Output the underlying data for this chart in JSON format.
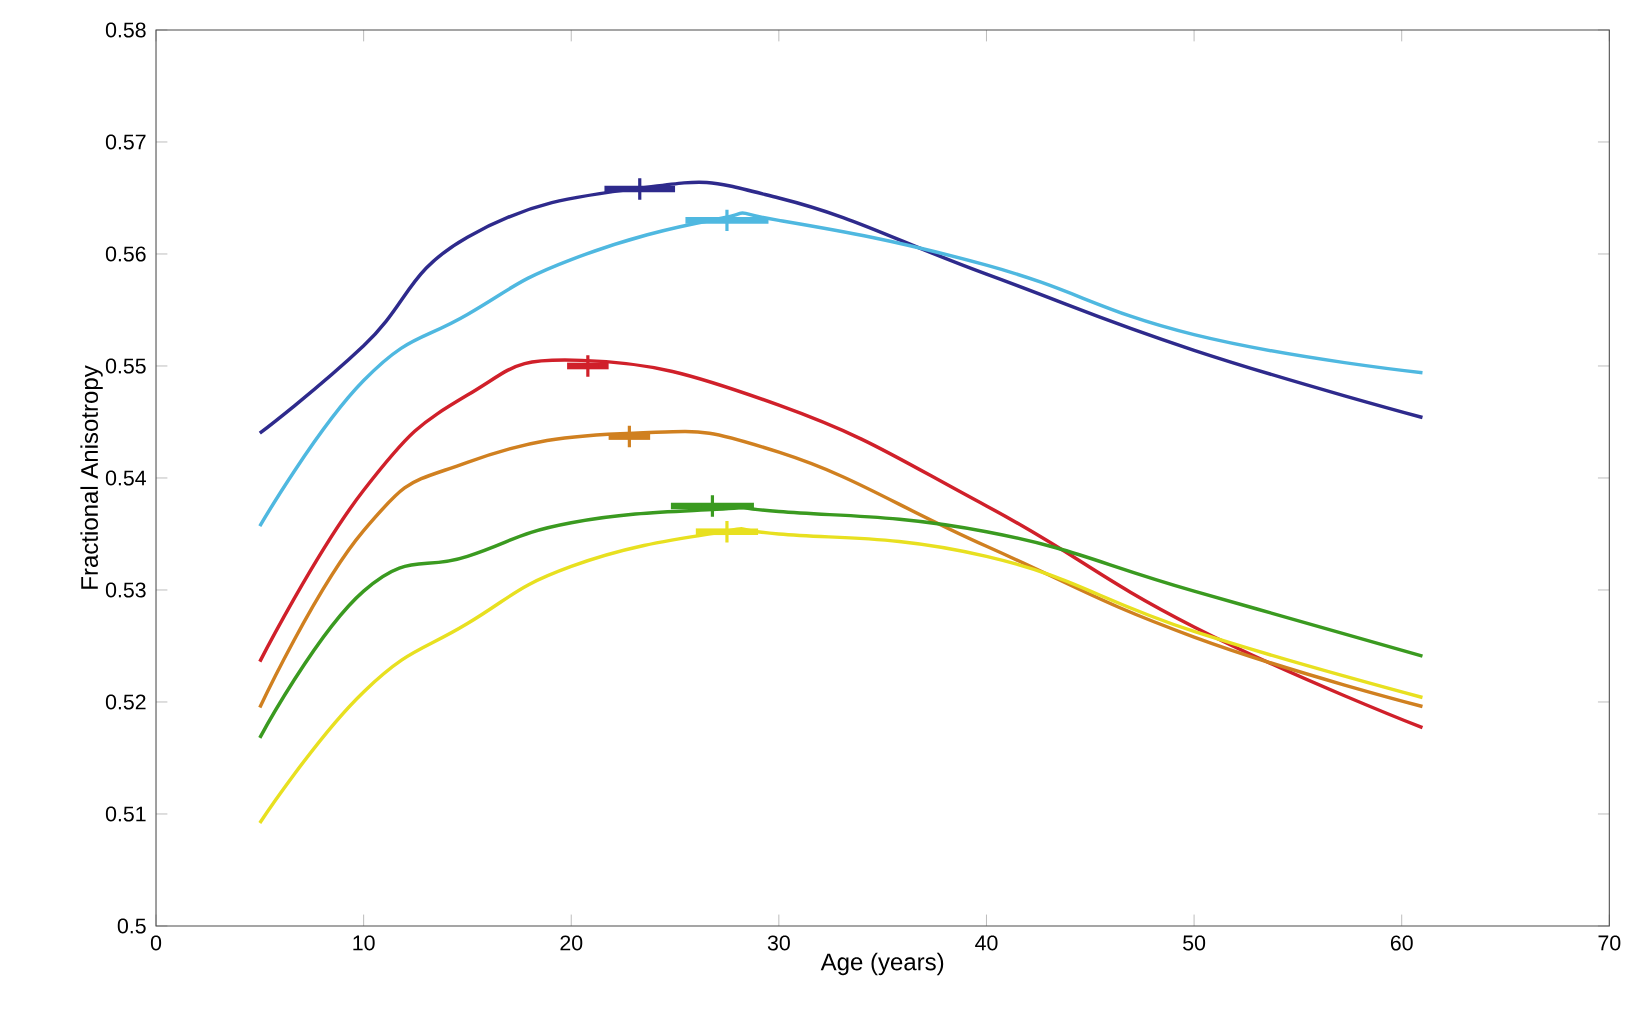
{
  "chart_data": {
    "type": "line",
    "xlabel": "Age (years)",
    "ylabel": "Fractional Anisotropy",
    "xlim": [
      0,
      70
    ],
    "xticks": [
      0,
      10,
      20,
      30,
      40,
      50,
      60,
      70
    ],
    "ylim": [
      0.5,
      0.58
    ],
    "yticks": [
      0.5,
      0.51,
      0.52,
      0.53,
      0.54,
      0.55,
      0.56,
      0.57,
      0.58
    ],
    "grid": false,
    "marker": "none",
    "line_style": "solid",
    "series": [
      {
        "color": "#2e2a8c",
        "x": [
          5,
          10,
          15,
          23.4,
          30,
          40,
          50,
          61
        ],
        "values": [
          0.544,
          0.5518,
          0.5615,
          0.5659,
          0.565,
          0.5582,
          0.5514,
          0.5454
        ]
      },
      {
        "color": "#4fb8e0",
        "x": [
          5,
          10,
          15,
          20,
          27,
          30,
          40,
          50,
          61
        ],
        "values": [
          0.5357,
          0.5487,
          0.5546,
          0.5595,
          0.5631,
          0.563,
          0.559,
          0.5528,
          0.5494
        ]
      },
      {
        "color": "#d0202a",
        "x": [
          5,
          10,
          15,
          20.5,
          30,
          40,
          50,
          61
        ],
        "values": [
          0.5236,
          0.5389,
          0.5474,
          0.5505,
          0.5465,
          0.5375,
          0.5267,
          0.5177
        ]
      },
      {
        "color": "#d08020",
        "x": [
          5,
          10,
          15,
          23,
          30,
          40,
          50,
          61
        ],
        "values": [
          0.5195,
          0.5353,
          0.5414,
          0.544,
          0.5423,
          0.5339,
          0.5258,
          0.5196
        ]
      },
      {
        "color": "#3a9a20",
        "x": [
          5,
          10,
          15,
          20,
          27,
          30,
          40,
          50,
          61
        ],
        "values": [
          0.5168,
          0.5299,
          0.533,
          0.536,
          0.5372,
          0.537,
          0.5352,
          0.5299,
          0.5241
        ]
      },
      {
        "color": "#e8e020",
        "x": [
          5,
          10,
          15,
          20,
          27,
          30,
          40,
          50,
          61
        ],
        "values": [
          0.5092,
          0.5209,
          0.527,
          0.5321,
          0.5351,
          0.535,
          0.533,
          0.5263,
          0.5204
        ]
      },
      {
        "type": "scatter",
        "marker": "cross",
        "x": [
          23.3,
          27.5,
          20.8,
          22.8,
          26.8,
          27.5
        ],
        "values": [
          0.5658,
          0.563,
          0.55,
          0.5437,
          0.5375,
          0.5352
        ],
        "colors": [
          "#2e2a8c",
          "#4fb8e0",
          "#d0202a",
          "#d08020",
          "#3a9a20",
          "#e8e020"
        ],
        "xerrors": [
          1.7,
          2.0,
          1.0,
          1.0,
          2.0,
          1.5
        ]
      }
    ]
  }
}
